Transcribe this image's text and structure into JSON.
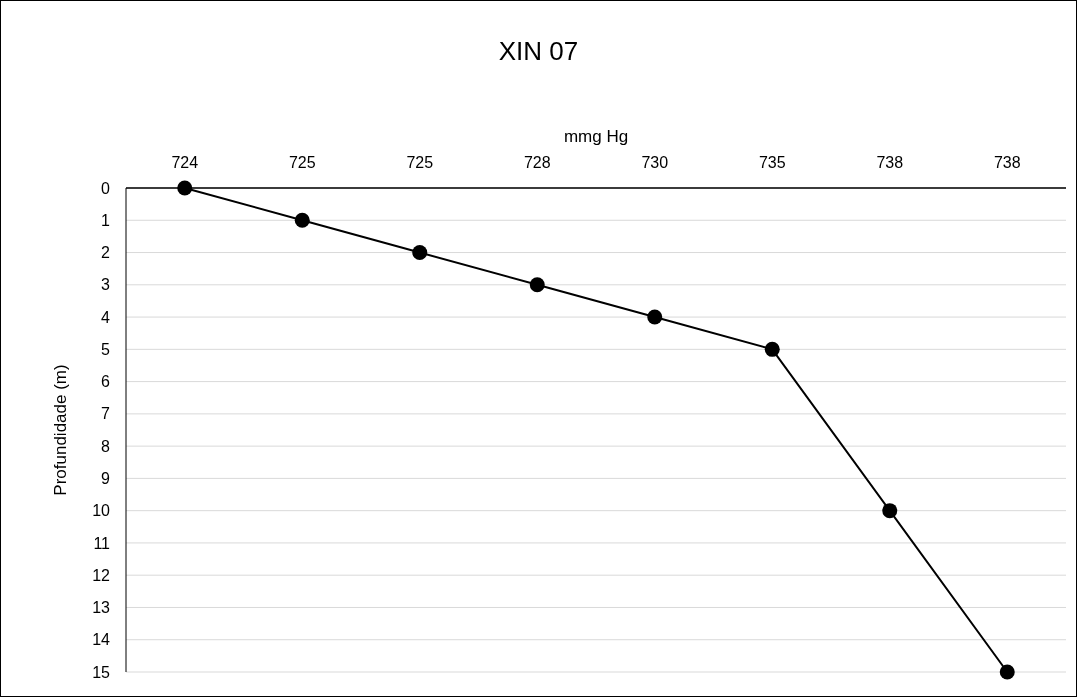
{
  "chart_data": {
    "type": "line",
    "title": "XIN 07",
    "xlabel": "mmg Hg",
    "ylabel": "Profundidade (m)",
    "categories": [
      "724",
      "725",
      "725",
      "728",
      "730",
      "735",
      "738",
      "738"
    ],
    "series": [
      {
        "color": "#000000",
        "values": [
          0,
          1,
          2,
          3,
          4,
          5,
          10,
          15
        ]
      }
    ],
    "ylim": [
      15,
      0
    ],
    "yticks": [
      0,
      1,
      2,
      3,
      4,
      5,
      6,
      7,
      8,
      9,
      10,
      11,
      12,
      13,
      14,
      15
    ],
    "grid": "y",
    "marker": "circle",
    "line_style": "solid"
  }
}
